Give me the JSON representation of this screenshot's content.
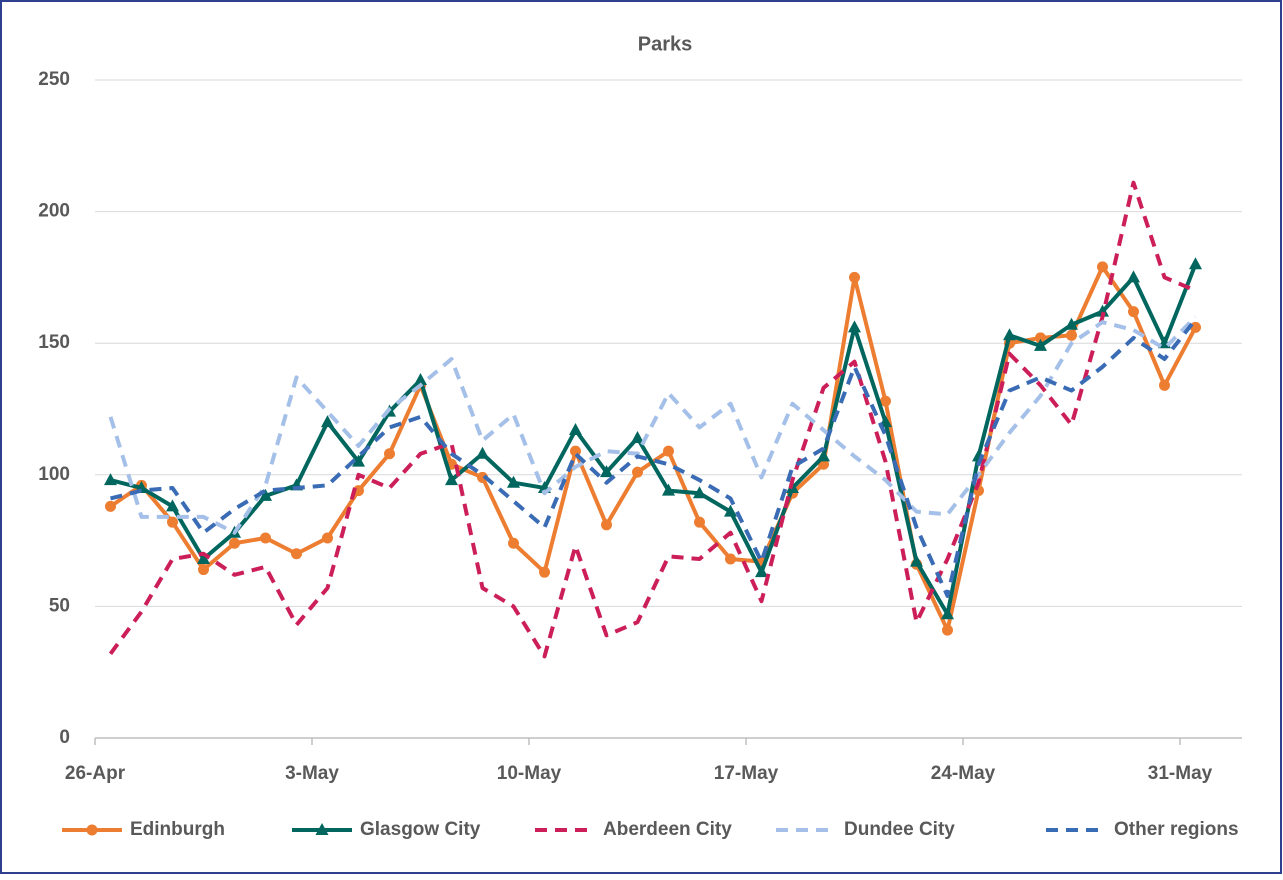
{
  "chart_data": {
    "type": "line",
    "title": "Parks",
    "categories": [
      "26-Apr",
      null,
      null,
      null,
      null,
      null,
      null,
      "3-May",
      null,
      null,
      null,
      null,
      null,
      null,
      "10-May",
      null,
      null,
      null,
      null,
      null,
      null,
      "17-May",
      null,
      null,
      null,
      null,
      null,
      null,
      "24-May",
      null,
      null,
      null,
      null,
      null,
      null,
      "31-May"
    ],
    "ylim": [
      0,
      250
    ],
    "yticks": [
      0,
      50,
      100,
      150,
      200,
      250
    ],
    "grid": true,
    "legend": "bottom",
    "series": [
      {
        "name": "Edinburgh",
        "color": "#ed7d31",
        "dash": false,
        "marker": "circle",
        "values": [
          88,
          96,
          82,
          64,
          74,
          76,
          70,
          76,
          94,
          108,
          134,
          104,
          99,
          74,
          63,
          109,
          81,
          101,
          109,
          82,
          68,
          67,
          93,
          104,
          175,
          128,
          66,
          41,
          94,
          150,
          152,
          153,
          179,
          162,
          134,
          156
        ]
      },
      {
        "name": "Glasgow City",
        "color": "#00665e",
        "dash": false,
        "marker": "triangle",
        "values": [
          98,
          95,
          88,
          68,
          78,
          92,
          96,
          120,
          105,
          124,
          136,
          98,
          108,
          97,
          95,
          117,
          101,
          114,
          94,
          93,
          86,
          63,
          95,
          107,
          156,
          120,
          67,
          47,
          107,
          153,
          149,
          157,
          162,
          175,
          150,
          180
        ]
      },
      {
        "name": "Aberdeen City",
        "color": "#cc1f5a",
        "dash": true,
        "marker": null,
        "values": [
          32,
          48,
          68,
          70,
          62,
          65,
          43,
          57,
          100,
          95,
          108,
          112,
          57,
          50,
          31,
          73,
          39,
          44,
          69,
          68,
          78,
          52,
          98,
          133,
          143,
          105,
          44,
          68,
          97,
          146,
          134,
          119,
          160,
          211,
          175,
          170
        ]
      },
      {
        "name": "Dundee City",
        "color": "#a5c0e8",
        "dash": true,
        "marker": null,
        "values": [
          122,
          84,
          84,
          84,
          78,
          96,
          137,
          124,
          111,
          125,
          134,
          144,
          113,
          123,
          93,
          103,
          109,
          108,
          131,
          118,
          127,
          99,
          127,
          117,
          107,
          98,
          86,
          85,
          100,
          116,
          130,
          150,
          158,
          155,
          148,
          160
        ]
      },
      {
        "name": "Other regions",
        "color": "#3a6bb5",
        "dash": true,
        "marker": null,
        "values": [
          91,
          94,
          95,
          78,
          87,
          94,
          95,
          96,
          107,
          118,
          122,
          108,
          100,
          90,
          80,
          108,
          97,
          107,
          104,
          98,
          91,
          67,
          103,
          110,
          141,
          115,
          80,
          54,
          104,
          132,
          137,
          132,
          141,
          152,
          144,
          159
        ]
      }
    ]
  }
}
